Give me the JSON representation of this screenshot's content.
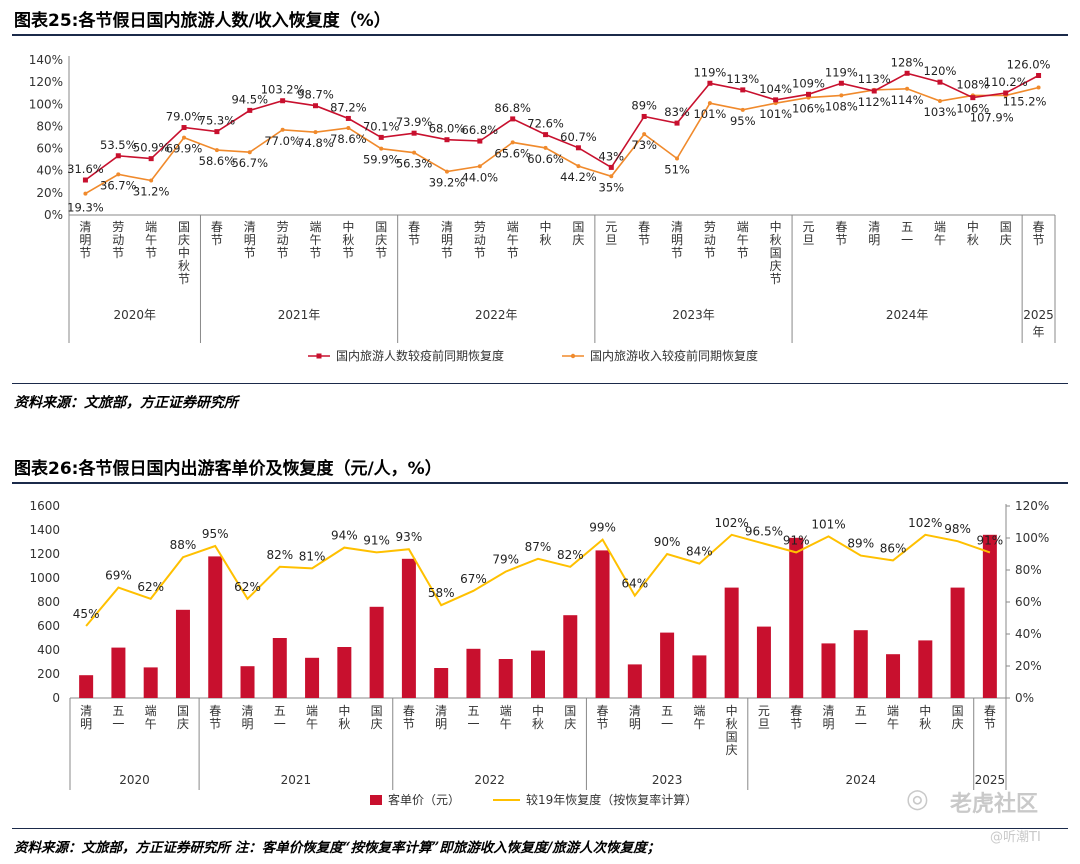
{
  "figure1": {
    "title": "图表25:各节假日国内旅游人数/收入恢复度（%）",
    "source": "资料来源：文旅部，方正证券研究所"
  },
  "figure2": {
    "title": "图表26:各节假日国内出游客单价及恢复度（元/人，%）",
    "source": "资料来源：文旅部，方正证券研究所 注：客单价恢复度“按恢复率计算”即旅游收入恢复度/旅游人次恢复度；"
  },
  "watermark": {
    "site": "老虎社区",
    "account": "@听潮TI"
  },
  "colors": {
    "red": "#c8102e",
    "orange": "#f08a2c",
    "gold": "#ffc000",
    "title_rule": "#1b2a4a",
    "grid": "#d9d9d9"
  },
  "chart_data": [
    {
      "type": "line",
      "categories": [
        "清明节",
        "劳动节",
        "端午节",
        "国庆中秋节",
        "春节",
        "清明节",
        "劳动节",
        "端午节",
        "中秋节",
        "国庆节",
        "春节",
        "清明节",
        "劳动节",
        "端午节",
        "中秋",
        "国庆",
        "元旦",
        "春节",
        "清明节",
        "劳动节",
        "端午节",
        "中秋国庆节",
        "元旦",
        "春节",
        "清明",
        "五一",
        "端午",
        "中秋",
        "国庆",
        "春节"
      ],
      "year_groups": [
        {
          "label": "2020年",
          "count": 4
        },
        {
          "label": "2021年",
          "count": 6
        },
        {
          "label": "2022年",
          "count": 6
        },
        {
          "label": "2023年",
          "count": 6
        },
        {
          "label": "2024年",
          "count": 7
        },
        {
          "label": "2025年",
          "count": 1
        }
      ],
      "series": [
        {
          "name": "国内旅游人数较疫前同期恢复度",
          "color": "#c8102e",
          "values": [
            31.6,
            53.5,
            50.9,
            79.0,
            75.3,
            94.5,
            103.2,
            98.7,
            87.2,
            70.1,
            73.9,
            68.0,
            66.8,
            86.8,
            72.6,
            60.7,
            43,
            89,
            83,
            119,
            113,
            104,
            109,
            119,
            112,
            128,
            120,
            106,
            110.2,
            126.0
          ],
          "labels": [
            "31.6%",
            "53.5%",
            "50.9%",
            "79.0%",
            "75.3%",
            "94.5%",
            "103.2%",
            "98.7%",
            "87.2%",
            "70.1%",
            "73.9%",
            "68.0%",
            "66.8%",
            "86.8%",
            "72.6%",
            "60.7%",
            "43%",
            "89%",
            "83%",
            "119%",
            "113%",
            "104%",
            "109%",
            "119%",
            "112%",
            "128%",
            "120%",
            "106%",
            "110.2%",
            "126.0%"
          ]
        },
        {
          "name": "国内旅游收入较疫前同期恢复度",
          "color": "#f08a2c",
          "values": [
            19.3,
            36.7,
            31.2,
            69.9,
            58.6,
            56.7,
            77.0,
            74.8,
            78.6,
            59.9,
            56.3,
            39.2,
            44.0,
            65.6,
            60.6,
            44.2,
            35,
            73,
            51,
            101,
            95,
            101,
            106,
            108,
            113,
            114,
            103,
            108,
            107.9,
            115.2
          ],
          "labels": [
            "19.3%",
            "36.7%",
            "31.2%",
            "69.9%",
            "58.6%",
            "56.7%",
            "77.0%",
            "74.8%",
            "78.6%",
            "59.9%",
            "56.3%",
            "39.2%",
            "44.0%",
            "65.6%",
            "60.6%",
            "44.2%",
            "35%",
            "73%",
            "51%",
            "101%",
            "95%",
            "101%",
            "106%",
            "108%",
            "113%",
            "114%",
            "103%",
            "108%",
            "107.9%",
            "115.2%"
          ]
        }
      ],
      "y_ticks": [
        "0%",
        "20%",
        "40%",
        "60%",
        "80%",
        "100%",
        "120%",
        "140%"
      ],
      "ylim": [
        0,
        140
      ],
      "grid": false,
      "legend_position": "bottom"
    },
    {
      "type": "bar",
      "categories": [
        "清明",
        "五一",
        "端午",
        "国庆",
        "春节",
        "清明",
        "五一",
        "端午",
        "中秋",
        "国庆",
        "春节",
        "清明",
        "五一",
        "端午",
        "中秋",
        "国庆",
        "春节",
        "清明",
        "五一",
        "端午",
        "中秋国庆",
        "元旦",
        "春节",
        "清明",
        "五一",
        "端午",
        "中秋",
        "国庆",
        "春节"
      ],
      "year_groups": [
        {
          "label": "2020",
          "count": 4
        },
        {
          "label": "2021",
          "count": 6
        },
        {
          "label": "2022",
          "count": 6
        },
        {
          "label": "2023",
          "count": 5
        },
        {
          "label": "2024",
          "count": 7
        },
        {
          "label": "2025",
          "count": 1
        }
      ],
      "series": [
        {
          "name": "客单价（元）",
          "color": "#c8102e",
          "axis": "left",
          "values": [
            190,
            420,
            255,
            735,
            1180,
            265,
            500,
            335,
            425,
            760,
            1160,
            250,
            410,
            325,
            395,
            690,
            1230,
            280,
            545,
            355,
            920,
            595,
            1335,
            455,
            565,
            365,
            480,
            920,
            1360
          ]
        },
        {
          "name": "较19年恢复度（按恢复率计算）",
          "color": "#ffc000",
          "axis": "right",
          "type": "line",
          "values": [
            45,
            69,
            62,
            88,
            95,
            62,
            82,
            81,
            94,
            91,
            93,
            58,
            67,
            79,
            87,
            82,
            99,
            64,
            90,
            84,
            102,
            96.5,
            91,
            101,
            89,
            86,
            102,
            98,
            91
          ],
          "labels": [
            "45%",
            "69%",
            "62%",
            "88%",
            "95%",
            "62%",
            "82%",
            "81%",
            "94%",
            "91%",
            "93%",
            "58%",
            "67%",
            "79%",
            "87%",
            "82%",
            "99%",
            "64%",
            "90%",
            "84%",
            "102%",
            "96.5%",
            "91%",
            "101%",
            "89%",
            "86%",
            "102%",
            "98%",
            "91%"
          ]
        }
      ],
      "y_ticks": [
        "0",
        "200",
        "400",
        "600",
        "800",
        "1000",
        "1200",
        "1400",
        "1600"
      ],
      "ylim": [
        0,
        1600
      ],
      "y2_ticks": [
        "0%",
        "20%",
        "40%",
        "60%",
        "80%",
        "100%",
        "120%"
      ],
      "y2lim": [
        0,
        120
      ],
      "grid": false,
      "legend_position": "bottom"
    }
  ]
}
